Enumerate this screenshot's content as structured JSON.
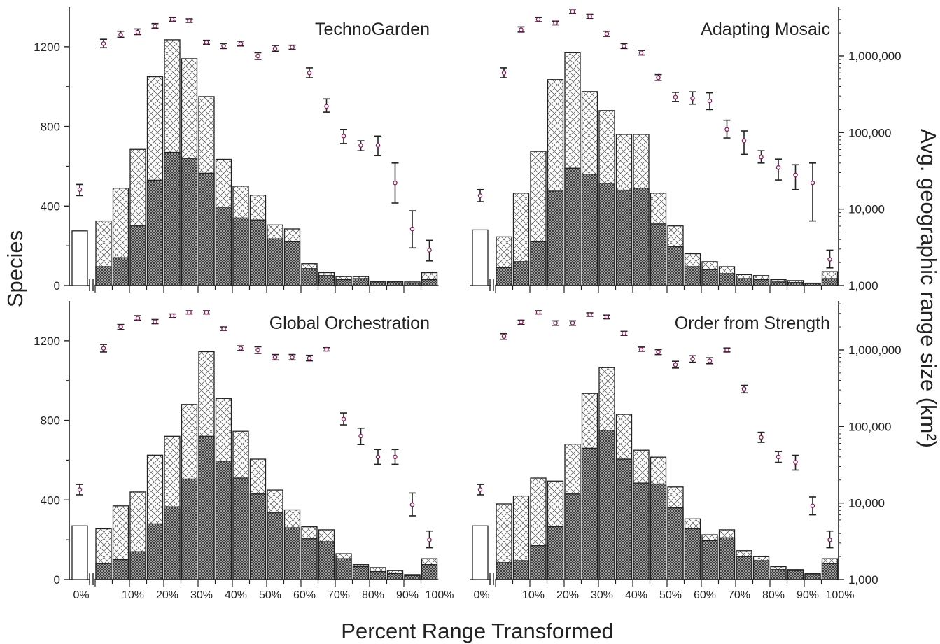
{
  "figure": {
    "xlabel": "Percent Range Transformed",
    "ylabel_left": "Species",
    "ylabel_right": "Avg. geographic range size (km²)",
    "x_tick_labels": [
      "0%",
      "10%",
      "20%",
      "30%",
      "40%",
      "50%",
      "60%",
      "70%",
      "80%",
      "90%",
      "100%"
    ],
    "y_left_ticks": [
      0,
      400,
      800,
      1200
    ],
    "y_left_tick_labels": [
      "0",
      "400",
      "800",
      "1200"
    ],
    "y_right_ticks": [
      1000,
      10000,
      100000,
      1000000
    ],
    "y_right_tick_labels": [
      "1,000",
      "10,000",
      "100,000",
      "1,000,000"
    ],
    "colors": {
      "ink": "#222222",
      "marker_fill": "#ffffff",
      "marker_stroke": "#8b1a5c"
    }
  },
  "chart_data": [
    {
      "type": "bar",
      "title": "TechnoGarden",
      "categories": [
        "0%",
        "0-5%",
        "5-10%",
        "10-15%",
        "15-20%",
        "20-25%",
        "25-30%",
        "30-35%",
        "35-40%",
        "40-45%",
        "45-50%",
        "50-55%",
        "55-60%",
        "60-65%",
        "65-70%",
        "70-75%",
        "75-80%",
        "80-85%",
        "85-90%",
        "90-95%",
        "95-100%"
      ],
      "ylim": [
        0,
        1400
      ],
      "series": [
        {
          "values": [
            275,
            95,
            140,
            300,
            530,
            670,
            640,
            565,
            395,
            340,
            330,
            235,
            220,
            85,
            50,
            30,
            35,
            18,
            18,
            12,
            30
          ]
        },
        {
          "values": [
            0,
            325,
            490,
            685,
            1050,
            1235,
            1140,
            950,
            635,
            500,
            455,
            305,
            285,
            110,
            65,
            45,
            45,
            22,
            22,
            18,
            65
          ]
        }
      ],
      "range": [
        {
          "mean": 18000,
          "low": 15000,
          "high": 21000
        },
        {
          "mean": 1450000,
          "low": 1280000,
          "high": 1650000
        },
        {
          "mean": 1900000,
          "low": 1750000,
          "high": 2100000
        },
        {
          "mean": 2050000,
          "low": 1900000,
          "high": 2250000
        },
        {
          "mean": 2450000,
          "low": 2300000,
          "high": 2650000
        },
        {
          "mean": 3000000,
          "low": 2850000,
          "high": 3200000
        },
        {
          "mean": 2900000,
          "low": 2750000,
          "high": 3050000
        },
        {
          "mean": 1500000,
          "low": 1420000,
          "high": 1600000
        },
        {
          "mean": 1350000,
          "low": 1250000,
          "high": 1450000
        },
        {
          "mean": 1450000,
          "low": 1350000,
          "high": 1560000
        },
        {
          "mean": 1000000,
          "low": 900000,
          "high": 1100000
        },
        {
          "mean": 1250000,
          "low": 1150000,
          "high": 1370000
        },
        {
          "mean": 1300000,
          "low": 1220000,
          "high": 1380000
        },
        {
          "mean": 600000,
          "low": 520000,
          "high": 700000
        },
        {
          "mean": 220000,
          "low": 185000,
          "high": 275000
        },
        {
          "mean": 90000,
          "low": 72000,
          "high": 110000
        },
        {
          "mean": 68000,
          "low": 58000,
          "high": 78000
        },
        {
          "mean": 68000,
          "low": 50000,
          "high": 90000
        },
        {
          "mean": 22000,
          "low": 12000,
          "high": 40000
        },
        {
          "mean": 5500,
          "low": 3100,
          "high": 9500
        },
        {
          "mean": 2900,
          "low": 2100,
          "high": 3900
        }
      ]
    },
    {
      "type": "bar",
      "title": "Adapting Mosaic",
      "categories": [
        "0%",
        "0-5%",
        "5-10%",
        "10-15%",
        "15-20%",
        "20-25%",
        "25-30%",
        "30-35%",
        "35-40%",
        "40-45%",
        "45-50%",
        "50-55%",
        "55-60%",
        "60-65%",
        "65-70%",
        "70-75%",
        "75-80%",
        "80-85%",
        "85-90%",
        "90-95%",
        "95-100%"
      ],
      "ylim": [
        0,
        1400
      ],
      "series": [
        {
          "values": [
            280,
            90,
            120,
            220,
            475,
            590,
            560,
            515,
            480,
            490,
            310,
            195,
            95,
            80,
            60,
            35,
            30,
            18,
            15,
            10,
            35
          ]
        },
        {
          "values": [
            0,
            245,
            465,
            675,
            1035,
            1170,
            975,
            880,
            760,
            760,
            465,
            300,
            160,
            120,
            95,
            55,
            50,
            30,
            25,
            12,
            70
          ]
        }
      ],
      "range": [
        {
          "mean": 15000,
          "low": 12500,
          "high": 18000
        },
        {
          "mean": 600000,
          "low": 520000,
          "high": 700000
        },
        {
          "mean": 2200000,
          "low": 2050000,
          "high": 2400000
        },
        {
          "mean": 3000000,
          "low": 2800000,
          "high": 3200000
        },
        {
          "mean": 2700000,
          "low": 2550000,
          "high": 2850000
        },
        {
          "mean": 3800000,
          "low": 3600000,
          "high": 4000000
        },
        {
          "mean": 3300000,
          "low": 3100000,
          "high": 3500000
        },
        {
          "mean": 1950000,
          "low": 1800000,
          "high": 2100000
        },
        {
          "mean": 1350000,
          "low": 1250000,
          "high": 1450000
        },
        {
          "mean": 1100000,
          "low": 1030000,
          "high": 1180000
        },
        {
          "mean": 520000,
          "low": 480000,
          "high": 570000
        },
        {
          "mean": 290000,
          "low": 255000,
          "high": 335000
        },
        {
          "mean": 280000,
          "low": 235000,
          "high": 340000
        },
        {
          "mean": 260000,
          "low": 200000,
          "high": 330000
        },
        {
          "mean": 110000,
          "low": 85000,
          "high": 145000
        },
        {
          "mean": 78000,
          "low": 52000,
          "high": 105000
        },
        {
          "mean": 48000,
          "low": 40000,
          "high": 58000
        },
        {
          "mean": 35000,
          "low": 24000,
          "high": 45000
        },
        {
          "mean": 28000,
          "low": 18000,
          "high": 38000
        },
        {
          "mean": 22000,
          "low": 7000,
          "high": 40000
        },
        {
          "mean": 2200,
          "low": 1700,
          "high": 2900
        }
      ]
    },
    {
      "type": "bar",
      "title": "Global Orchestration",
      "categories": [
        "0%",
        "0-5%",
        "5-10%",
        "10-15%",
        "15-20%",
        "20-25%",
        "25-30%",
        "30-35%",
        "35-40%",
        "40-45%",
        "45-50%",
        "50-55%",
        "55-60%",
        "60-65%",
        "65-70%",
        "70-75%",
        "75-80%",
        "80-85%",
        "85-90%",
        "90-95%",
        "95-100%"
      ],
      "ylim": [
        0,
        1400
      ],
      "series": [
        {
          "values": [
            270,
            80,
            100,
            140,
            280,
            365,
            505,
            720,
            595,
            510,
            430,
            335,
            260,
            205,
            190,
            105,
            65,
            40,
            30,
            20,
            75
          ]
        },
        {
          "values": [
            0,
            255,
            370,
            440,
            625,
            720,
            880,
            1145,
            910,
            745,
            605,
            450,
            350,
            265,
            250,
            130,
            75,
            60,
            45,
            25,
            105
          ]
        }
      ],
      "range": [
        {
          "mean": 15000,
          "low": 12800,
          "high": 17500
        },
        {
          "mean": 1050000,
          "low": 940000,
          "high": 1180000
        },
        {
          "mean": 2000000,
          "low": 1850000,
          "high": 2150000
        },
        {
          "mean": 2600000,
          "low": 2450000,
          "high": 2800000
        },
        {
          "mean": 2350000,
          "low": 2200000,
          "high": 2500000
        },
        {
          "mean": 2800000,
          "low": 2650000,
          "high": 2950000
        },
        {
          "mean": 3100000,
          "low": 2950000,
          "high": 3250000
        },
        {
          "mean": 3100000,
          "low": 2950000,
          "high": 3250000
        },
        {
          "mean": 1900000,
          "low": 1800000,
          "high": 2000000
        },
        {
          "mean": 1050000,
          "low": 980000,
          "high": 1130000
        },
        {
          "mean": 1000000,
          "low": 900000,
          "high": 1100000
        },
        {
          "mean": 800000,
          "low": 740000,
          "high": 870000
        },
        {
          "mean": 800000,
          "low": 740000,
          "high": 870000
        },
        {
          "mean": 780000,
          "low": 720000,
          "high": 850000
        },
        {
          "mean": 1020000,
          "low": 970000,
          "high": 1070000
        },
        {
          "mean": 125000,
          "low": 105000,
          "high": 150000
        },
        {
          "mean": 75000,
          "low": 58000,
          "high": 95000
        },
        {
          "mean": 40000,
          "low": 32000,
          "high": 50000
        },
        {
          "mean": 40000,
          "low": 32000,
          "high": 50000
        },
        {
          "mean": 9500,
          "low": 6800,
          "high": 13500
        },
        {
          "mean": 3300,
          "low": 2600,
          "high": 4300
        }
      ]
    },
    {
      "type": "bar",
      "title": "Order from Strength",
      "categories": [
        "0%",
        "0-5%",
        "5-10%",
        "10-15%",
        "15-20%",
        "20-25%",
        "25-30%",
        "30-35%",
        "35-40%",
        "40-45%",
        "45-50%",
        "50-55%",
        "55-60%",
        "60-65%",
        "65-70%",
        "70-75%",
        "75-80%",
        "80-85%",
        "85-90%",
        "90-95%",
        "95-100%"
      ],
      "ylim": [
        0,
        1400
      ],
      "series": [
        {
          "values": [
            270,
            85,
            95,
            170,
            265,
            430,
            660,
            750,
            605,
            485,
            480,
            360,
            255,
            195,
            210,
            115,
            95,
            50,
            45,
            25,
            80
          ]
        },
        {
          "values": [
            0,
            380,
            420,
            510,
            495,
            680,
            935,
            1065,
            830,
            650,
            615,
            465,
            305,
            225,
            250,
            145,
            115,
            65,
            50,
            30,
            105
          ]
        }
      ],
      "range": [
        {
          "mean": 15000,
          "low": 12800,
          "high": 17500
        },
        {
          "mean": 1500000,
          "low": 1380000,
          "high": 1630000
        },
        {
          "mean": 2300000,
          "low": 2150000,
          "high": 2450000
        },
        {
          "mean": 3100000,
          "low": 2950000,
          "high": 3250000
        },
        {
          "mean": 2250000,
          "low": 2100000,
          "high": 2400000
        },
        {
          "mean": 2250000,
          "low": 2100000,
          "high": 2400000
        },
        {
          "mean": 2900000,
          "low": 2750000,
          "high": 3050000
        },
        {
          "mean": 2700000,
          "low": 2550000,
          "high": 2850000
        },
        {
          "mean": 1650000,
          "low": 1550000,
          "high": 1750000
        },
        {
          "mean": 1020000,
          "low": 960000,
          "high": 1090000
        },
        {
          "mean": 940000,
          "low": 870000,
          "high": 1010000
        },
        {
          "mean": 640000,
          "low": 580000,
          "high": 710000
        },
        {
          "mean": 760000,
          "low": 690000,
          "high": 840000
        },
        {
          "mean": 720000,
          "low": 660000,
          "high": 790000
        },
        {
          "mean": 1000000,
          "low": 940000,
          "high": 1060000
        },
        {
          "mean": 310000,
          "low": 275000,
          "high": 345000
        },
        {
          "mean": 72000,
          "low": 62000,
          "high": 84000
        },
        {
          "mean": 40000,
          "low": 34000,
          "high": 47000
        },
        {
          "mean": 34000,
          "low": 27000,
          "high": 42000
        },
        {
          "mean": 9200,
          "low": 7000,
          "high": 12000
        },
        {
          "mean": 3300,
          "low": 2600,
          "high": 4300
        }
      ]
    }
  ]
}
